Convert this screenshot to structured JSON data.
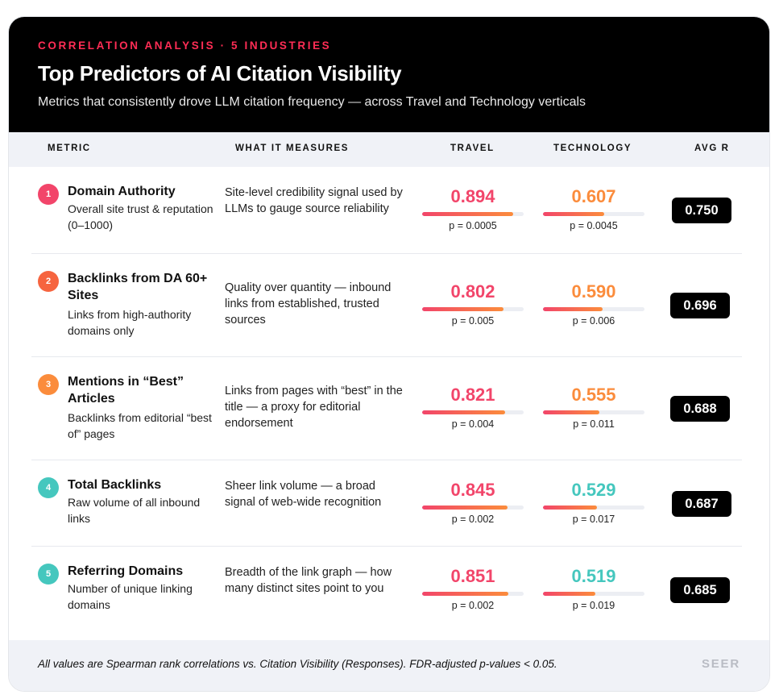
{
  "header": {
    "eyebrow": "CORRELATION ANALYSIS · 5 INDUSTRIES",
    "title": "Top Predictors of AI Citation Visibility",
    "subtitle": "Metrics that consistently drove LLM citation frequency — across Travel and Technology verticals"
  },
  "columns": {
    "metric": "METRIC",
    "measures": "WHAT IT MEASURES",
    "travel": "TRAVEL",
    "technology": "TECHNOLOGY",
    "avg": "AVG R"
  },
  "colors": {
    "accent_red": "#f2456a",
    "accent_orange": "#fb8c3c",
    "accent_teal": "#45c7be",
    "header_bg": "#000000"
  },
  "chart_data": {
    "type": "table",
    "title": "Top Predictors of AI Citation Visibility",
    "series": [
      {
        "name": "TRAVEL",
        "values": [
          0.894,
          0.802,
          0.821,
          0.845,
          0.851
        ]
      },
      {
        "name": "TECHNOLOGY",
        "values": [
          0.607,
          0.59,
          0.555,
          0.529,
          0.519
        ]
      },
      {
        "name": "AVG R",
        "values": [
          0.75,
          0.696,
          0.688,
          0.687,
          0.685
        ]
      }
    ],
    "categories": [
      "Domain Authority",
      "Backlinks from DA 60+ Sites",
      "Mentions in “Best” Articles",
      "Total Backlinks",
      "Referring Domains"
    ],
    "rows": [
      {
        "rank": "1",
        "badge_color": "#f2456a",
        "metric": "Domain Authority",
        "desc": "Overall site trust & reputation (0–1000)",
        "measures": "Site-level credibility signal used by LLMs to gauge source reliability",
        "travel": {
          "label": "0.894",
          "value": 0.894,
          "p": "p = 0.0005",
          "color": "#f2456a"
        },
        "tech": {
          "label": "0.607",
          "value": 0.607,
          "p": "p = 0.0045",
          "color": "#fb8c3c"
        },
        "avg": "0.750"
      },
      {
        "rank": "2",
        "badge_color": "#f6643f",
        "metric": "Backlinks from DA 60+ Sites",
        "desc": "Links from high-authority domains only",
        "measures": "Quality over quantity — inbound links from established, trusted sources",
        "travel": {
          "label": "0.802",
          "value": 0.802,
          "p": "p = 0.005",
          "color": "#f2456a"
        },
        "tech": {
          "label": "0.590",
          "value": 0.59,
          "p": "p = 0.006",
          "color": "#fb8c3c"
        },
        "avg": "0.696"
      },
      {
        "rank": "3",
        "badge_color": "#fb8c3c",
        "metric": "Mentions in “Best” Articles",
        "desc": "Backlinks from editorial “best of” pages",
        "measures": "Links from pages with “best” in the title — a proxy for editorial endorsement",
        "travel": {
          "label": "0.821",
          "value": 0.821,
          "p": "p = 0.004",
          "color": "#f2456a"
        },
        "tech": {
          "label": "0.555",
          "value": 0.555,
          "p": "p = 0.011",
          "color": "#fb8c3c"
        },
        "avg": "0.688"
      },
      {
        "rank": "4",
        "badge_color": "#45c7be",
        "metric": "Total Backlinks",
        "desc": "Raw volume of all inbound links",
        "measures": "Sheer link volume — a broad signal of web-wide recognition",
        "travel": {
          "label": "0.845",
          "value": 0.845,
          "p": "p = 0.002",
          "color": "#f2456a"
        },
        "tech": {
          "label": "0.529",
          "value": 0.529,
          "p": "p = 0.017",
          "color": "#45c7be"
        },
        "avg": "0.687"
      },
      {
        "rank": "5",
        "badge_color": "#45c7be",
        "metric": "Referring Domains",
        "desc": "Number of unique linking domains",
        "measures": "Breadth of the link graph — how many distinct sites point to you",
        "travel": {
          "label": "0.851",
          "value": 0.851,
          "p": "p = 0.002",
          "color": "#f2456a"
        },
        "tech": {
          "label": "0.519",
          "value": 0.519,
          "p": "p = 0.019",
          "color": "#45c7be"
        },
        "avg": "0.685"
      }
    ]
  },
  "footer": {
    "note": "All values are Spearman rank correlations vs. Citation Visibility (Responses). FDR-adjusted p-values < 0.05.",
    "brand": "SEER"
  }
}
